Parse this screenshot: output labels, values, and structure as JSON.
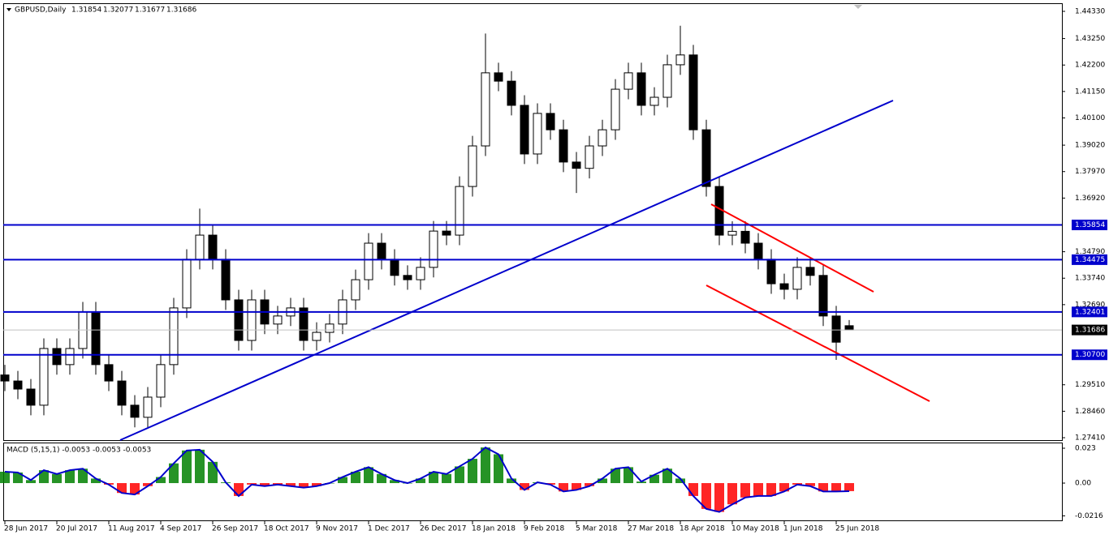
{
  "header": {
    "symbol": "GBPUSD,Daily",
    "open": 1.31854,
    "high": 1.32077,
    "low": 1.31677,
    "close": 1.31686
  },
  "chart_data": [
    {
      "type": "candlestick",
      "categories": [
        "28 Jun 2017",
        null,
        null,
        null,
        "20 Jul 2017",
        null,
        null,
        null,
        "11 Aug 2017",
        null,
        null,
        null,
        "4 Sep 2017",
        null,
        null,
        null,
        "26 Sep 2017",
        null,
        null,
        null,
        "18 Oct 2017",
        null,
        null,
        null,
        "9 Nov 2017",
        null,
        null,
        null,
        "1 Dec 2017",
        null,
        null,
        null,
        "26 Dec 2017",
        null,
        null,
        null,
        "18 Jan 2018",
        null,
        null,
        null,
        "9 Feb 2018",
        null,
        null,
        null,
        "5 Mar 2018",
        null,
        null,
        null,
        "27 Mar 2018",
        null,
        null,
        null,
        "18 Apr 2018",
        null,
        null,
        null,
        "10 May 2018",
        null,
        null,
        null,
        "1 Jun 2018",
        null,
        null,
        null,
        "25 Jun 2018",
        null
      ],
      "open": [
        1.299,
        1.2966,
        1.2934,
        1.287,
        1.3095,
        1.3031,
        1.3095,
        1.324,
        1.3031,
        1.2966,
        1.287,
        1.2822,
        1.2902,
        1.3031,
        1.3256,
        1.3449,
        1.3545,
        1.3449,
        1.3288,
        1.3127,
        1.3288,
        1.3192,
        1.3224,
        1.3256,
        1.3127,
        1.3159,
        1.3192,
        1.3288,
        1.3368,
        1.3513,
        1.3449,
        1.3385,
        1.3368,
        1.3417,
        1.3561,
        1.3545,
        1.3738,
        1.3899,
        1.4189,
        1.4156,
        1.406,
        1.3867,
        1.4028,
        1.3963,
        1.3835,
        1.381,
        1.3899,
        1.3963,
        1.4124,
        1.4189,
        1.406,
        1.4092,
        1.4221,
        1.426,
        1.3963,
        1.3738,
        1.3545,
        1.356,
        1.3513,
        1.3449,
        1.3352,
        1.333,
        1.3417,
        1.3385,
        1.3224,
        1.31854
      ],
      "high": [
        1.303,
        1.3006,
        1.2974,
        1.3135,
        1.3135,
        1.3135,
        1.328,
        1.328,
        1.3071,
        1.3006,
        1.291,
        1.2942,
        1.3071,
        1.3296,
        1.3489,
        1.365,
        1.3585,
        1.3489,
        1.3328,
        1.3328,
        1.3328,
        1.3264,
        1.3296,
        1.3296,
        1.3199,
        1.3232,
        1.3328,
        1.3408,
        1.3553,
        1.3553,
        1.3489,
        1.3425,
        1.3457,
        1.3601,
        1.3601,
        1.3778,
        1.3939,
        1.4345,
        1.4229,
        1.4196,
        1.41,
        1.4068,
        1.4068,
        1.4003,
        1.3875,
        1.3939,
        1.4003,
        1.4164,
        1.4229,
        1.4229,
        1.4132,
        1.4261,
        1.4376,
        1.43,
        1.4003,
        1.3778,
        1.36,
        1.36,
        1.3553,
        1.3489,
        1.3392,
        1.3457,
        1.3457,
        1.3425,
        1.3264,
        1.32077
      ],
      "low": [
        1.2926,
        1.2894,
        1.283,
        1.283,
        1.2991,
        1.2991,
        1.3055,
        1.2991,
        1.2926,
        1.283,
        1.2782,
        1.2782,
        1.2862,
        1.2991,
        1.3216,
        1.3409,
        1.3409,
        1.3248,
        1.3087,
        1.3087,
        1.3152,
        1.3152,
        1.3184,
        1.3087,
        1.3087,
        1.3119,
        1.3152,
        1.3248,
        1.3328,
        1.3409,
        1.3345,
        1.3328,
        1.3328,
        1.3377,
        1.3505,
        1.3505,
        1.3698,
        1.3859,
        1.4116,
        1.402,
        1.3827,
        1.3827,
        1.3923,
        1.3795,
        1.3712,
        1.377,
        1.3859,
        1.3923,
        1.4084,
        1.402,
        1.402,
        1.4052,
        1.4181,
        1.3923,
        1.3698,
        1.3505,
        1.3505,
        1.3473,
        1.3409,
        1.3312,
        1.329,
        1.329,
        1.3345,
        1.3184,
        1.305,
        1.31677
      ],
      "close": [
        1.2966,
        1.2934,
        1.287,
        1.3095,
        1.3031,
        1.3095,
        1.324,
        1.3031,
        1.2966,
        1.287,
        1.2822,
        1.2902,
        1.3031,
        1.3256,
        1.3449,
        1.3545,
        1.3449,
        1.3288,
        1.3127,
        1.3288,
        1.3192,
        1.3224,
        1.3256,
        1.3127,
        1.3159,
        1.3192,
        1.3288,
        1.3368,
        1.3513,
        1.3449,
        1.3385,
        1.3368,
        1.3417,
        1.3561,
        1.3545,
        1.3738,
        1.3899,
        1.4189,
        1.4156,
        1.406,
        1.3867,
        1.4028,
        1.3963,
        1.3835,
        1.381,
        1.3899,
        1.3963,
        1.4124,
        1.4189,
        1.406,
        1.4092,
        1.4221,
        1.426,
        1.3963,
        1.3738,
        1.3545,
        1.356,
        1.3513,
        1.3449,
        1.3352,
        1.333,
        1.3417,
        1.3385,
        1.3224,
        1.312,
        1.31686
      ],
      "ylim": [
        1.27314,
        1.44652
      ],
      "yticks": [
        {
          "value": 1.4433,
          "label": "1.44330"
        },
        {
          "value": 1.4325,
          "label": "1.43250"
        },
        {
          "value": 1.422,
          "label": "1.42200"
        },
        {
          "value": 1.4115,
          "label": "1.41150"
        },
        {
          "value": 1.401,
          "label": "1.40100"
        },
        {
          "value": 1.3902,
          "label": "1.39020"
        },
        {
          "value": 1.3797,
          "label": "1.37970"
        },
        {
          "value": 1.3692,
          "label": "1.36920"
        },
        {
          "value": 1.3479,
          "label": "1.34790"
        },
        {
          "value": 1.3374,
          "label": "1.33740"
        },
        {
          "value": 1.3269,
          "label": "1.32690"
        },
        {
          "value": 1.2951,
          "label": "1.29510"
        },
        {
          "value": 1.2846,
          "label": "1.28460"
        },
        {
          "value": 1.2741,
          "label": "1.27410"
        }
      ],
      "levels": [
        1.35854,
        1.34475,
        1.32401,
        {
          "value": 1.307,
          "label": "1.30700"
        }
      ],
      "level_color": "#0000cc",
      "current_price": 1.31686
    },
    {
      "type": "bar",
      "title": "MACD (5,15,1) -0.0053 -0.0053 -0.0053",
      "values": [
        0.0075,
        0.007,
        0.002,
        0.0085,
        0.006,
        0.0085,
        0.0095,
        0.003,
        -0.001,
        -0.0065,
        -0.0075,
        -0.002,
        0.004,
        0.013,
        0.0215,
        0.022,
        0.014,
        0.0005,
        -0.0085,
        -0.001,
        -0.002,
        -0.001,
        -0.002,
        -0.003,
        -0.002,
        0,
        0.004,
        0.0075,
        0.0105,
        0.006,
        0.002,
        0,
        0.003,
        0.0075,
        0.006,
        0.011,
        0.016,
        0.0235,
        0.019,
        0.003,
        -0.0045,
        0.0005,
        -0.001,
        -0.0055,
        -0.0045,
        -0.002,
        0.003,
        0.0095,
        0.0105,
        0.001,
        0.0055,
        0.0095,
        0.003,
        -0.0085,
        -0.017,
        -0.019,
        -0.014,
        -0.0095,
        -0.0085,
        -0.0085,
        -0.0055,
        -0.001,
        -0.002,
        -0.0055,
        -0.0055,
        -0.0053
      ],
      "positive_color": "#008000",
      "negative_color": "#ff0000",
      "line_color": "#0000cc",
      "ylim": [
        -0.0251,
        0.0262
      ],
      "yticks": [
        0.023,
        {
          "value": 0,
          "label": "0.00"
        },
        -0.0216
      ]
    }
  ]
}
